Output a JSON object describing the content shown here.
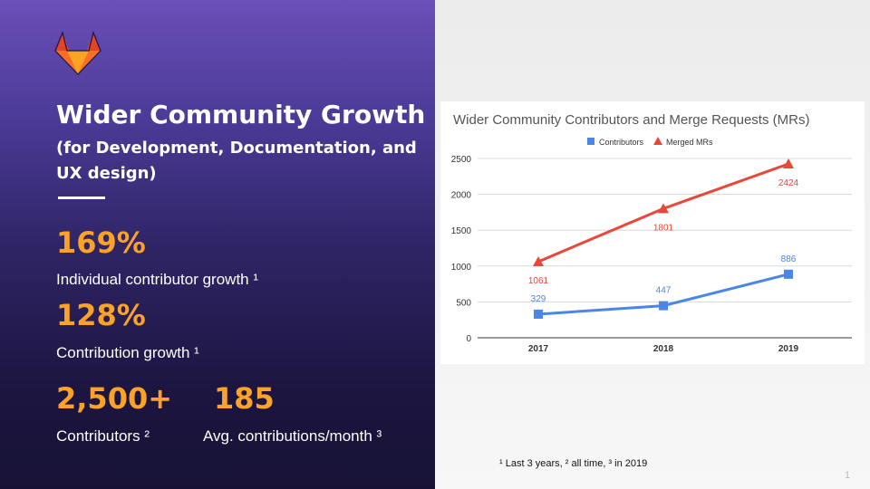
{
  "slide": {
    "title": "Wider Community Growth",
    "subtitle": "(for Development, Documentation, and UX design)",
    "stats": [
      {
        "value": "169%",
        "label": "Individual contributor growth ¹"
      },
      {
        "value": "128%",
        "label": "Contribution growth ¹"
      },
      {
        "value": "2,500+",
        "label": "Contributors ²"
      },
      {
        "value": "185",
        "label": "Avg. contributions/month ³"
      }
    ],
    "footnote": "¹ Last 3 years,  ² all time, ³ in 2019",
    "page_number": "1",
    "colors": {
      "accent": "#fca326",
      "contributors": "#4a86e8",
      "merged": "#e8473a"
    },
    "logo_icon": "gitlab-tanuki-icon"
  },
  "chart_data": {
    "type": "line",
    "title": "Wider Community Contributors and Merge Requests (MRs)",
    "categories": [
      "2017",
      "2018",
      "2019"
    ],
    "series": [
      {
        "name": "Contributors",
        "values": [
          329,
          447,
          886
        ],
        "color": "#4a86e8",
        "marker": "square"
      },
      {
        "name": "Merged MRs",
        "values": [
          1061,
          1801,
          2424
        ],
        "color": "#e8473a",
        "marker": "triangle"
      }
    ],
    "yticks": [
      0,
      500,
      1000,
      1500,
      2000,
      2500
    ],
    "ylim": [
      0,
      2500
    ],
    "grid": true,
    "legend_position": "top"
  }
}
